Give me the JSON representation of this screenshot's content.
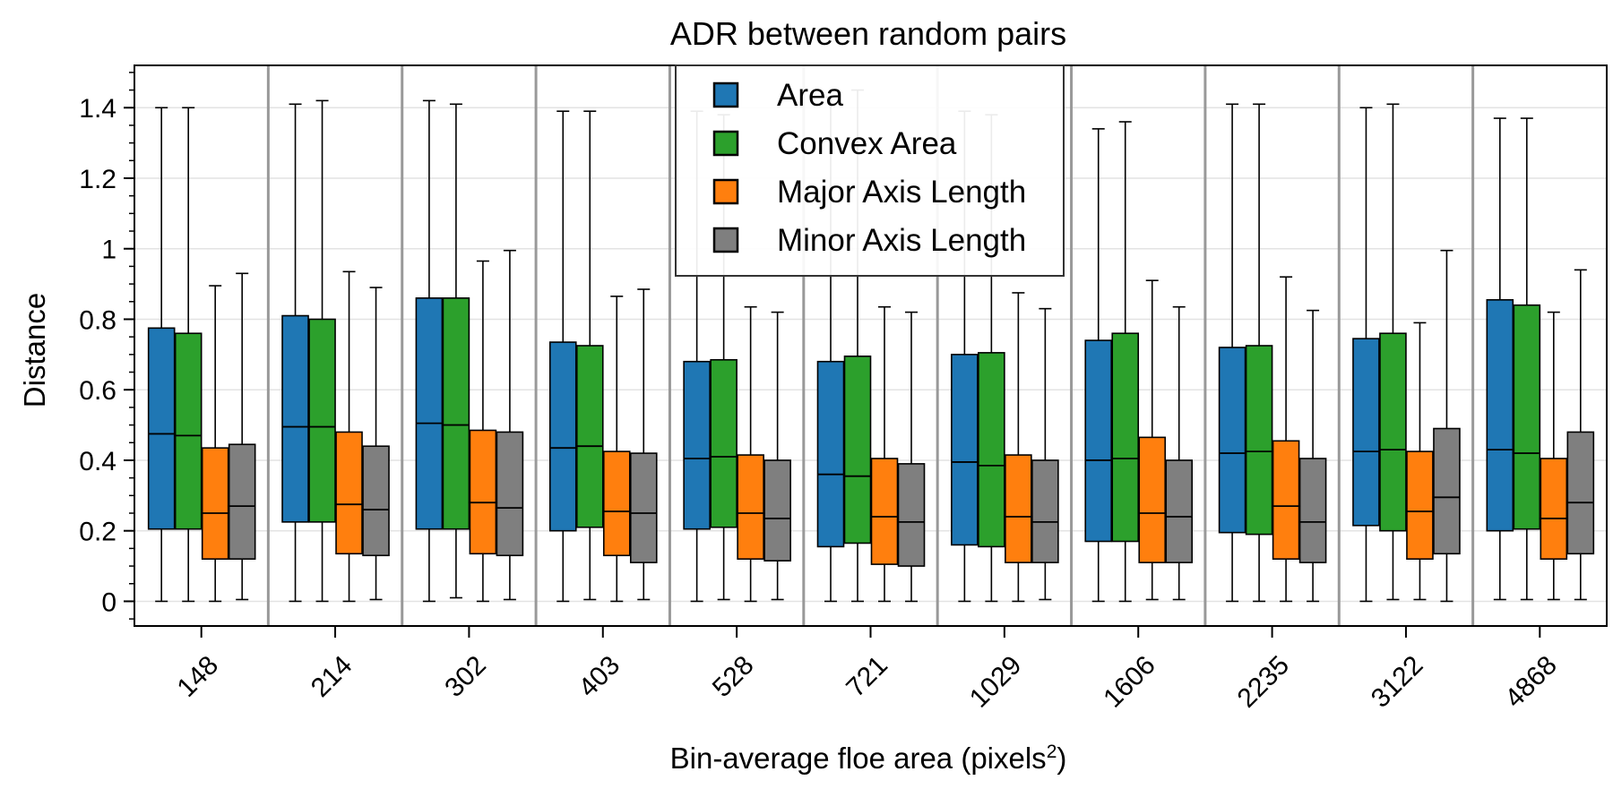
{
  "chart_data": {
    "type": "box",
    "title": "ADR between random pairs",
    "xlabel": "Bin-average floe area (pixels",
    "xlabel_sup": "2",
    "xlabel_close": ")",
    "ylabel": "Distance",
    "ylim": [
      -0.07,
      1.52
    ],
    "yticks": [
      0,
      0.2,
      0.4,
      0.6,
      0.8,
      1,
      1.2,
      1.4
    ],
    "ytick_labels": [
      "0",
      "0.2",
      "0.4",
      "0.6",
      "0.8",
      "1",
      "1.2",
      "1.4"
    ],
    "categories": [
      "148",
      "214",
      "302",
      "403",
      "528",
      "721",
      "1029",
      "1606",
      "2235",
      "3122",
      "4868"
    ],
    "grid": true,
    "legend_position": "top-center",
    "series": [
      {
        "name": "Area",
        "color": "#1f77b4",
        "boxes": [
          {
            "whislo": 0.0,
            "q1": 0.205,
            "med": 0.475,
            "q3": 0.775,
            "whishi": 1.4
          },
          {
            "whislo": 0.0,
            "q1": 0.225,
            "med": 0.495,
            "q3": 0.81,
            "whishi": 1.41
          },
          {
            "whislo": 0.0,
            "q1": 0.205,
            "med": 0.505,
            "q3": 0.86,
            "whishi": 1.42
          },
          {
            "whislo": 0.0,
            "q1": 0.2,
            "med": 0.435,
            "q3": 0.735,
            "whishi": 1.39
          },
          {
            "whislo": 0.0,
            "q1": 0.205,
            "med": 0.405,
            "q3": 0.68,
            "whishi": 1.39
          },
          {
            "whislo": 0.0,
            "q1": 0.155,
            "med": 0.36,
            "q3": 0.68,
            "whishi": 1.43
          },
          {
            "whislo": 0.0,
            "q1": 0.16,
            "med": 0.395,
            "q3": 0.7,
            "whishi": 1.39
          },
          {
            "whislo": 0.0,
            "q1": 0.17,
            "med": 0.4,
            "q3": 0.74,
            "whishi": 1.34
          },
          {
            "whislo": 0.0,
            "q1": 0.195,
            "med": 0.42,
            "q3": 0.72,
            "whishi": 1.41
          },
          {
            "whislo": 0.0,
            "q1": 0.215,
            "med": 0.425,
            "q3": 0.745,
            "whishi": 1.4
          },
          {
            "whislo": 0.005,
            "q1": 0.2,
            "med": 0.43,
            "q3": 0.855,
            "whishi": 1.37
          }
        ]
      },
      {
        "name": "Convex Area",
        "color": "#2ca02c",
        "boxes": [
          {
            "whislo": 0.0,
            "q1": 0.205,
            "med": 0.47,
            "q3": 0.76,
            "whishi": 1.4
          },
          {
            "whislo": 0.0,
            "q1": 0.225,
            "med": 0.495,
            "q3": 0.8,
            "whishi": 1.42
          },
          {
            "whislo": 0.01,
            "q1": 0.205,
            "med": 0.5,
            "q3": 0.86,
            "whishi": 1.41
          },
          {
            "whislo": 0.005,
            "q1": 0.21,
            "med": 0.44,
            "q3": 0.725,
            "whishi": 1.39
          },
          {
            "whislo": 0.005,
            "q1": 0.21,
            "med": 0.41,
            "q3": 0.685,
            "whishi": 1.38
          },
          {
            "whislo": 0.0,
            "q1": 0.165,
            "med": 0.355,
            "q3": 0.695,
            "whishi": 1.45
          },
          {
            "whislo": 0.0,
            "q1": 0.155,
            "med": 0.385,
            "q3": 0.705,
            "whishi": 1.38
          },
          {
            "whislo": 0.0,
            "q1": 0.17,
            "med": 0.405,
            "q3": 0.76,
            "whishi": 1.36
          },
          {
            "whislo": 0.0,
            "q1": 0.19,
            "med": 0.425,
            "q3": 0.725,
            "whishi": 1.41
          },
          {
            "whislo": 0.005,
            "q1": 0.2,
            "med": 0.43,
            "q3": 0.76,
            "whishi": 1.41
          },
          {
            "whislo": 0.005,
            "q1": 0.205,
            "med": 0.42,
            "q3": 0.84,
            "whishi": 1.37
          }
        ]
      },
      {
        "name": "Major Axis Length",
        "color": "#ff7f0e",
        "boxes": [
          {
            "whislo": 0.0,
            "q1": 0.12,
            "med": 0.25,
            "q3": 0.435,
            "whishi": 0.895
          },
          {
            "whislo": 0.0,
            "q1": 0.135,
            "med": 0.275,
            "q3": 0.48,
            "whishi": 0.935
          },
          {
            "whislo": 0.0,
            "q1": 0.135,
            "med": 0.28,
            "q3": 0.485,
            "whishi": 0.965
          },
          {
            "whislo": 0.0,
            "q1": 0.13,
            "med": 0.255,
            "q3": 0.425,
            "whishi": 0.865
          },
          {
            "whislo": 0.0,
            "q1": 0.12,
            "med": 0.25,
            "q3": 0.415,
            "whishi": 0.835
          },
          {
            "whislo": 0.0,
            "q1": 0.105,
            "med": 0.24,
            "q3": 0.405,
            "whishi": 0.835
          },
          {
            "whislo": 0.0,
            "q1": 0.11,
            "med": 0.24,
            "q3": 0.415,
            "whishi": 0.875
          },
          {
            "whislo": 0.005,
            "q1": 0.11,
            "med": 0.25,
            "q3": 0.465,
            "whishi": 0.91
          },
          {
            "whislo": 0.0,
            "q1": 0.12,
            "med": 0.27,
            "q3": 0.455,
            "whishi": 0.92
          },
          {
            "whislo": 0.005,
            "q1": 0.12,
            "med": 0.255,
            "q3": 0.425,
            "whishi": 0.79
          },
          {
            "whislo": 0.005,
            "q1": 0.12,
            "med": 0.235,
            "q3": 0.405,
            "whishi": 0.82
          }
        ]
      },
      {
        "name": "Minor Axis Length",
        "color": "#7f7f7f",
        "boxes": [
          {
            "whislo": 0.005,
            "q1": 0.12,
            "med": 0.27,
            "q3": 0.445,
            "whishi": 0.93
          },
          {
            "whislo": 0.005,
            "q1": 0.13,
            "med": 0.26,
            "q3": 0.44,
            "whishi": 0.89
          },
          {
            "whislo": 0.005,
            "q1": 0.13,
            "med": 0.265,
            "q3": 0.48,
            "whishi": 0.995
          },
          {
            "whislo": 0.005,
            "q1": 0.11,
            "med": 0.25,
            "q3": 0.42,
            "whishi": 0.885
          },
          {
            "whislo": 0.005,
            "q1": 0.115,
            "med": 0.235,
            "q3": 0.4,
            "whishi": 0.82
          },
          {
            "whislo": 0.0,
            "q1": 0.1,
            "med": 0.225,
            "q3": 0.39,
            "whishi": 0.82
          },
          {
            "whislo": 0.005,
            "q1": 0.11,
            "med": 0.225,
            "q3": 0.4,
            "whishi": 0.83
          },
          {
            "whislo": 0.005,
            "q1": 0.11,
            "med": 0.24,
            "q3": 0.4,
            "whishi": 0.835
          },
          {
            "whislo": 0.0,
            "q1": 0.11,
            "med": 0.225,
            "q3": 0.405,
            "whishi": 0.825
          },
          {
            "whislo": 0.0,
            "q1": 0.135,
            "med": 0.295,
            "q3": 0.49,
            "whishi": 0.995
          },
          {
            "whislo": 0.005,
            "q1": 0.135,
            "med": 0.28,
            "q3": 0.48,
            "whishi": 0.94
          }
        ]
      }
    ]
  }
}
